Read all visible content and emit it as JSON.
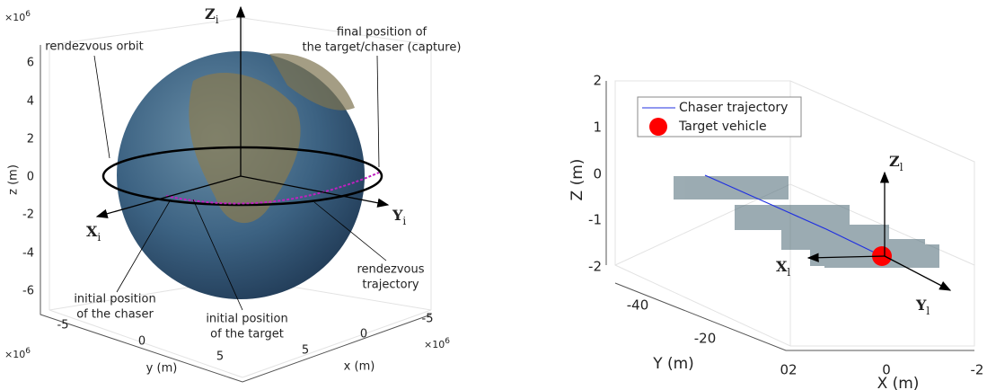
{
  "left_plot": {
    "z_exponent": {
      "base": "×10",
      "exp": "6"
    },
    "y_exponent": {
      "base": "×10",
      "exp": "6"
    },
    "x_exponent": {
      "base": "×10",
      "exp": "6"
    },
    "z_ticks": [
      "6",
      "4",
      "2",
      "0",
      "-2",
      "-4",
      "-6"
    ],
    "y_ticks": [
      "-5",
      "0",
      "5"
    ],
    "x_ticks": [
      "5",
      "0",
      "-5"
    ],
    "z_label": "z (m)",
    "y_label": "y (m)",
    "x_label": "x (m)",
    "axes": {
      "z": {
        "main": "Z",
        "sub": "i"
      },
      "x": {
        "main": "X",
        "sub": "i"
      },
      "y": {
        "main": "Y",
        "sub": "i"
      }
    },
    "annotations": {
      "orbit": "rendezvous orbit",
      "final": [
        "final position of",
        "the target/chaser (capture)"
      ],
      "trajectory": [
        "rendezvous",
        "trajectory"
      ],
      "chaser": [
        "initial position",
        "of the chaser"
      ],
      "target": [
        "initial position",
        "of the target"
      ]
    }
  },
  "right_plot": {
    "z_ticks": [
      "2",
      "1",
      "0",
      "-1",
      "-2"
    ],
    "y_ticks": [
      "-40",
      "-20",
      "02"
    ],
    "x_ticks": [
      "0",
      "-2"
    ],
    "z_label": "Z (m)",
    "y_label": "Y (m)",
    "x_label": "X (m)",
    "legend": [
      "Chaser trajectory",
      "Target vehicle"
    ],
    "axes": {
      "z": {
        "main": "Z",
        "sub": "l"
      },
      "x": {
        "main": "X",
        "sub": "l"
      },
      "y": {
        "main": "Y",
        "sub": "l"
      }
    }
  }
}
